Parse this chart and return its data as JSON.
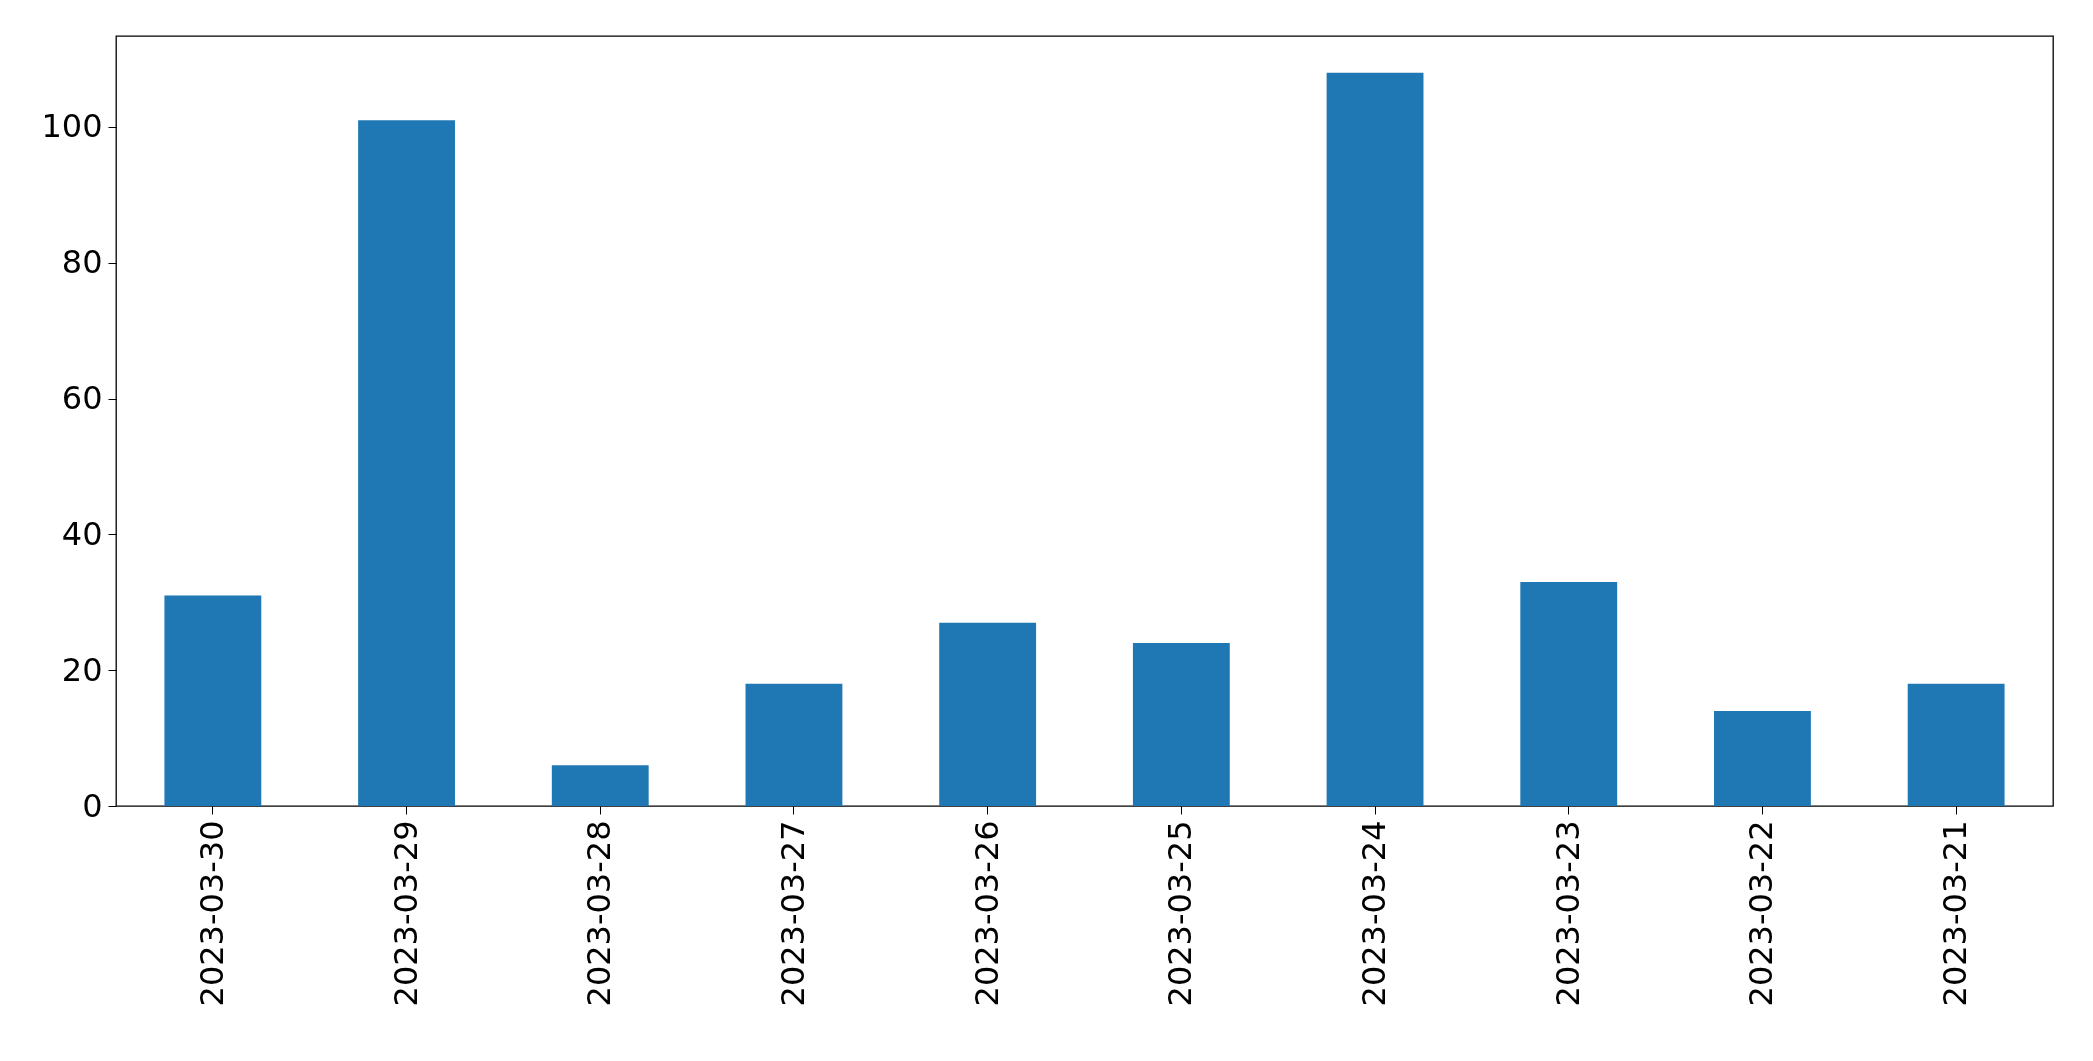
{
  "chart_data": {
    "type": "bar",
    "categories": [
      "2023-03-30",
      "2023-03-29",
      "2023-03-28",
      "2023-03-27",
      "2023-03-26",
      "2023-03-25",
      "2023-03-24",
      "2023-03-23",
      "2023-03-22",
      "2023-03-21"
    ],
    "values": [
      31,
      101,
      6,
      18,
      27,
      24,
      108,
      33,
      14,
      18
    ],
    "color": "#1f77b4",
    "ylim": [
      0,
      113.4
    ],
    "yticks": [
      0,
      20,
      40,
      60,
      80,
      100
    ],
    "grid": false
  }
}
